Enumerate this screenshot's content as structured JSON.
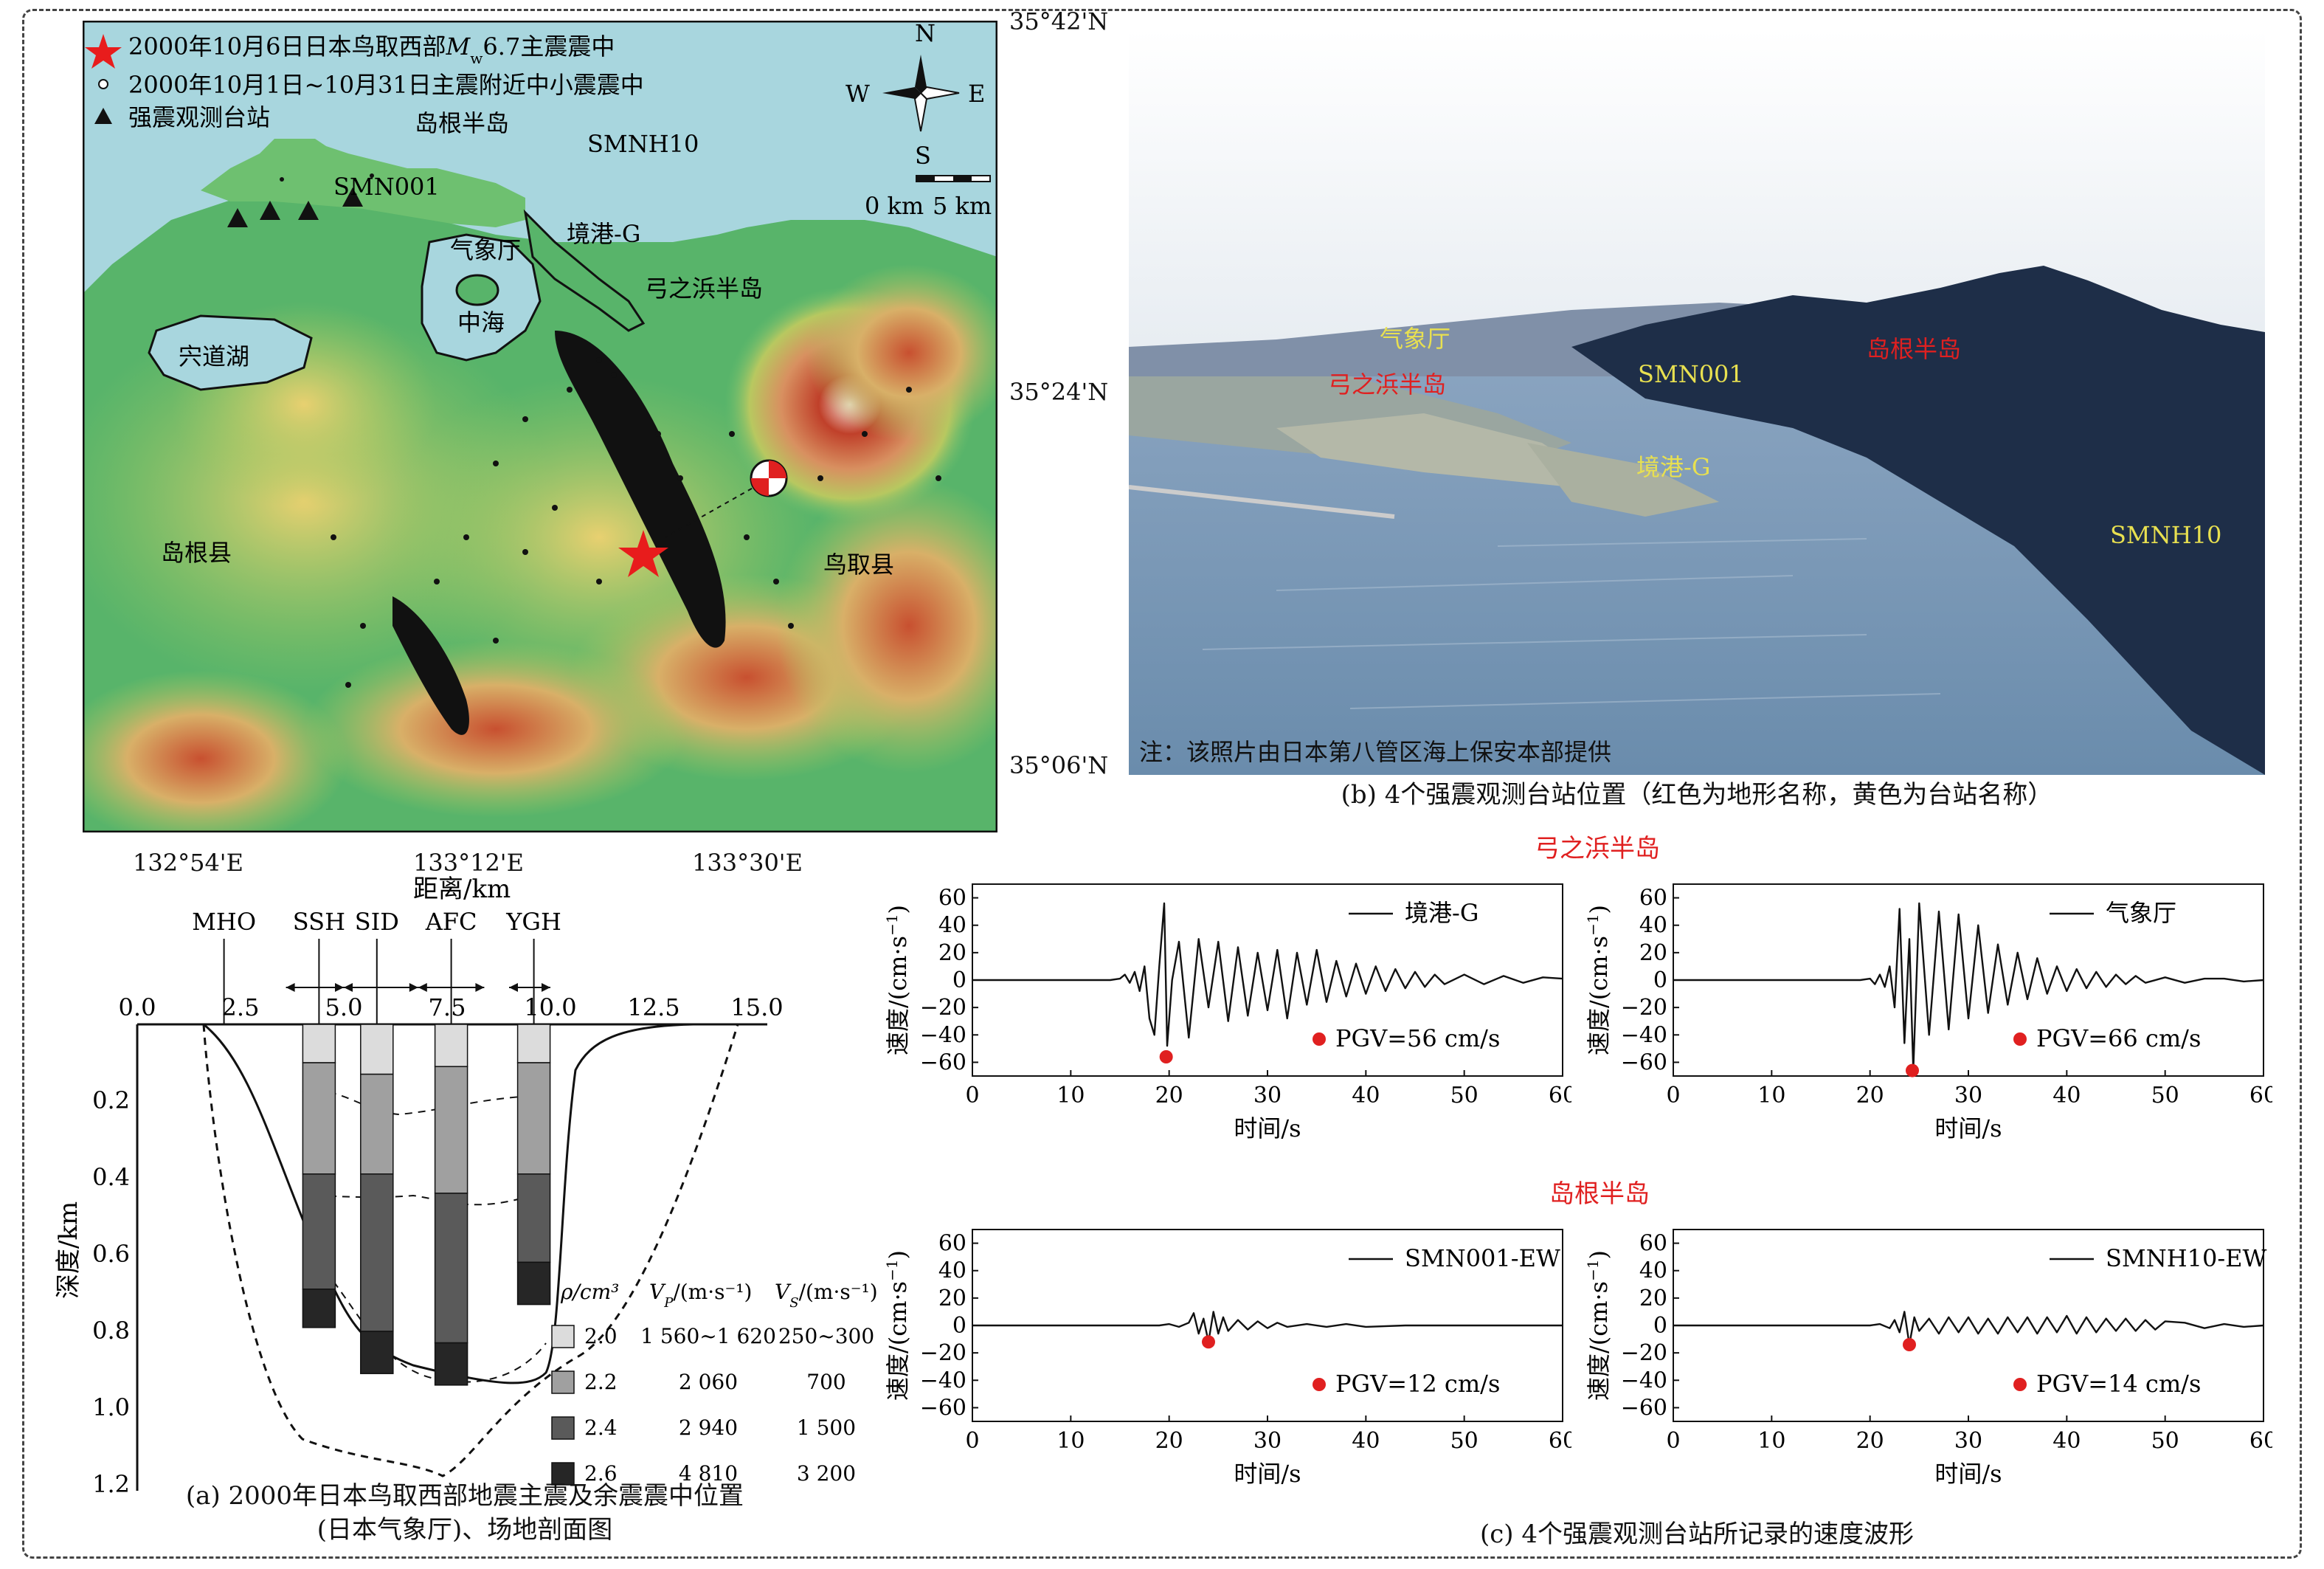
{
  "panel_a": {
    "map": {
      "legend": {
        "mainshock": "2000年10月6日日本鸟取西部",
        "mainshock_mag_prefix": "M",
        "mainshock_mag_sub": "w",
        "mainshock_mag_rest": "6.7主震震中",
        "aftershock": "2000年10月1日~10月31日主震附近中小震震中",
        "station": "强震观测台站"
      },
      "compass": {
        "n": "N",
        "s": "S",
        "e": "E",
        "w": "W"
      },
      "scalebar": {
        "zero": "0 km",
        "five": "5 km"
      },
      "place_labels": {
        "shimane_peninsula": "岛根半岛",
        "smnh10": "SMNH10",
        "smn001": "SMN001",
        "sakaiminato_g": "境港-G",
        "jma": "气象厅",
        "yumigahama": "弓之浜半岛",
        "nakaumi": "中海",
        "shinjiko": "宍道湖",
        "shimane_pref": "岛根县",
        "tottori_pref": "鸟取县"
      },
      "lat_ticks": [
        "35°42'N",
        "35°24'N",
        "35°06'N"
      ],
      "lon_ticks": [
        "132°54'E",
        "133°12'E",
        "133°30'E"
      ],
      "colors": {
        "sea": "#a8d6de",
        "lowland": "#4db366",
        "mid": "#c8d870",
        "high": "#c8502c",
        "peak": "#f0d8d0"
      }
    },
    "profile": {
      "xlabel": "距离/km",
      "ylabel": "深度/km",
      "x_ticks": [
        "0.0",
        "2.5",
        "5.0",
        "7.5",
        "10.0",
        "12.5",
        "15.0"
      ],
      "y_ticks": [
        "0.2",
        "0.4",
        "0.6",
        "0.8",
        "1.0",
        "1.2"
      ],
      "stations": [
        "MHO",
        "SSH",
        "SID",
        "AFC",
        "YGH"
      ],
      "table_headers": {
        "rho": "ρ/cm³",
        "vp_sym": "V",
        "vp_sub": "P",
        "vp_unit": "/(m·s⁻¹)",
        "vs_sym": "V",
        "vs_sub": "S",
        "vs_unit": "/(m·s⁻¹)"
      },
      "layers": [
        {
          "rho": "2.0",
          "vp": "1 560~1 620",
          "vs": "250~300",
          "color": "#dcdcdc"
        },
        {
          "rho": "2.2",
          "vp": "2 060",
          "vs": "700",
          "color": "#a0a0a0"
        },
        {
          "rho": "2.4",
          "vp": "2 940",
          "vs": "1 500",
          "color": "#5a5a5a"
        },
        {
          "rho": "2.6",
          "vp": "4 810",
          "vs": "3 200",
          "color": "#262626"
        }
      ],
      "columns": [
        {
          "station": "SSH",
          "x_km": 4.4,
          "layer_bottoms_km": [
            0.1,
            0.39,
            0.69,
            0.79
          ]
        },
        {
          "station": "SID",
          "x_km": 5.8,
          "layer_bottoms_km": [
            0.13,
            0.39,
            0.8,
            0.91
          ]
        },
        {
          "station": "AFC",
          "x_km": 7.6,
          "layer_bottoms_km": [
            0.11,
            0.44,
            0.83,
            0.94
          ]
        },
        {
          "station": "YGH",
          "x_km": 9.6,
          "layer_bottoms_km": [
            0.1,
            0.39,
            0.62,
            0.73
          ]
        }
      ]
    },
    "caption_line1": "(a) 2000年日本鸟取西部地震主震及余震震中位置",
    "caption_line2": "(日本气象厅)、场地剖面图"
  },
  "panel_b": {
    "labels": {
      "jma": "气象厅",
      "yumigahama": "弓之浜半岛",
      "smn001": "SMN001",
      "shimane_peninsula": "岛根半岛",
      "sakaiminato_g": "境港-G",
      "smnh10": "SMNH10"
    },
    "note": "注：该照片由日本第八管区海上保安本部提供",
    "caption": "(b) 4个强震观测台站位置（红色为地形名称，黄色为台站名称）"
  },
  "panel_c": {
    "group_titles": [
      "弓之浜半岛",
      "岛根半岛"
    ],
    "ylabel_main": "速度/(cm·s",
    "ylabel_sup": "−1",
    "ylabel_end": ")",
    "xlabel": "时间/s",
    "caption": "(c) 4个强震观测台站所记录的速度波形"
  },
  "chart_data": [
    {
      "type": "line",
      "name": "sakaiminato-g",
      "legend": "境港-G",
      "pgv_label": "PGV=56 cm/s",
      "x_ticks": [
        "0",
        "10",
        "20",
        "30",
        "40",
        "50",
        "60"
      ],
      "y_ticks": [
        "60",
        "40",
        "20",
        "0",
        "−20",
        "−40",
        "−60"
      ],
      "xlim": [
        0,
        60
      ],
      "ylim": [
        -70,
        70
      ],
      "pgv_point": [
        19.7,
        -56
      ],
      "x": [
        0,
        14,
        15,
        15.5,
        16,
        16.5,
        17,
        17.5,
        18,
        18.5,
        19,
        19.5,
        19.8,
        20.3,
        21,
        22,
        23,
        24,
        25,
        26,
        27,
        28,
        29,
        30,
        31,
        32,
        33,
        34,
        35,
        36,
        37,
        38,
        39,
        40,
        41,
        42,
        43,
        44,
        45,
        46,
        47,
        48,
        50,
        52,
        54,
        56,
        58,
        60
      ],
      "y": [
        0,
        0,
        1,
        4,
        -2,
        6,
        -8,
        10,
        -28,
        -40,
        10,
        56,
        -48,
        0,
        28,
        -42,
        30,
        -20,
        28,
        -30,
        24,
        -26,
        20,
        -22,
        22,
        -28,
        20,
        -18,
        22,
        -16,
        14,
        -12,
        12,
        -10,
        10,
        -8,
        8,
        -6,
        6,
        -5,
        4,
        -3,
        4,
        -3,
        3,
        -2,
        2,
        1
      ]
    },
    {
      "type": "line",
      "name": "jma",
      "legend": "气象厅",
      "pgv_label": "PGV=66 cm/s",
      "x_ticks": [
        "0",
        "10",
        "20",
        "30",
        "40",
        "50",
        "60"
      ],
      "y_ticks": [
        "60",
        "40",
        "20",
        "0",
        "−20",
        "−40",
        "−60"
      ],
      "xlim": [
        0,
        60
      ],
      "ylim": [
        -70,
        70
      ],
      "pgv_point": [
        24.3,
        -66
      ],
      "x": [
        0,
        19,
        20,
        20.5,
        21,
        21.5,
        22,
        22.5,
        23,
        23.5,
        24,
        24.4,
        25,
        26,
        27,
        28,
        29,
        30,
        31,
        32,
        33,
        34,
        35,
        36,
        37,
        38,
        39,
        40,
        41,
        42,
        43,
        44,
        45,
        46,
        47,
        48,
        50,
        52,
        54,
        56,
        58,
        60
      ],
      "y": [
        0,
        0,
        1,
        -3,
        4,
        -5,
        10,
        -20,
        52,
        -46,
        30,
        -66,
        56,
        -40,
        50,
        -36,
        48,
        -28,
        40,
        -24,
        26,
        -18,
        20,
        -14,
        16,
        -10,
        10,
        -8,
        8,
        -6,
        6,
        -5,
        4,
        -3,
        3,
        -2,
        2,
        -2,
        1,
        1,
        -1,
        0
      ]
    },
    {
      "type": "line",
      "name": "smn001-ew",
      "legend": "SMN001-EW",
      "pgv_label": "PGV=12 cm/s",
      "x_ticks": [
        "0",
        "10",
        "20",
        "30",
        "40",
        "50",
        "60"
      ],
      "y_ticks": [
        "60",
        "40",
        "20",
        "0",
        "−20",
        "−40",
        "−60"
      ],
      "xlim": [
        0,
        60
      ],
      "ylim": [
        -70,
        70
      ],
      "pgv_point": [
        24.0,
        -12
      ],
      "x": [
        0,
        19,
        20,
        21,
        22,
        22.5,
        23,
        23.5,
        24,
        24.5,
        25,
        25.5,
        26,
        27,
        28,
        29,
        30,
        31,
        32,
        34,
        36,
        38,
        40,
        44,
        50,
        56,
        60
      ],
      "y": [
        0,
        0,
        1,
        -1,
        2,
        9,
        -6,
        5,
        -12,
        10,
        -6,
        6,
        -4,
        4,
        -3,
        3,
        -2,
        2,
        -1,
        1,
        -1,
        1,
        -1,
        0,
        0,
        0,
        0
      ]
    },
    {
      "type": "line",
      "name": "smnh10-ew",
      "legend": "SMNH10-EW",
      "pgv_label": "PGV=14 cm/s",
      "x_ticks": [
        "0",
        "10",
        "20",
        "30",
        "40",
        "50",
        "60"
      ],
      "y_ticks": [
        "60",
        "40",
        "20",
        "0",
        "−20",
        "−40",
        "−60"
      ],
      "xlim": [
        0,
        60
      ],
      "ylim": [
        -70,
        70
      ],
      "pgv_point": [
        24.0,
        -14
      ],
      "x": [
        0,
        20,
        21,
        22,
        22.5,
        23,
        23.5,
        24,
        24.5,
        25,
        26,
        27,
        28,
        29,
        30,
        31,
        32,
        33,
        34,
        35,
        36,
        37,
        38,
        39,
        40,
        41,
        42,
        43,
        44,
        45,
        46,
        47,
        48,
        49,
        50,
        52,
        54,
        56,
        58,
        60
      ],
      "y": [
        0,
        0,
        1,
        -2,
        4,
        -5,
        10,
        -14,
        6,
        -4,
        5,
        -6,
        6,
        -5,
        6,
        -6,
        5,
        -6,
        6,
        -5,
        6,
        -6,
        6,
        -5,
        7,
        -6,
        6,
        -5,
        5,
        -4,
        5,
        -4,
        4,
        -3,
        3,
        2,
        -2,
        1,
        -1,
        0
      ]
    }
  ]
}
